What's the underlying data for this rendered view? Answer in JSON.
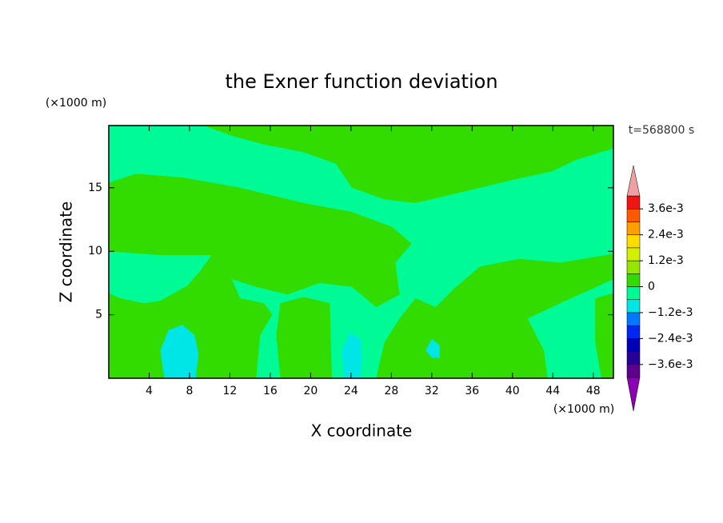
{
  "chart_data": {
    "type": "contour",
    "title": "the Exner function deviation",
    "x_label": "X coordinate",
    "y_label": "Z coordinate",
    "x_unit": "(×1000 m)",
    "y_unit": "(×1000 m)",
    "time_label": "t=568800 s",
    "xlim": [
      0,
      50
    ],
    "ylim": [
      0,
      19.9
    ],
    "xticks": [
      4,
      8,
      12,
      16,
      20,
      24,
      28,
      32,
      36,
      40,
      44,
      48
    ],
    "yticks": [
      5,
      10,
      15
    ],
    "levels": [
      -0.0042,
      -0.0036,
      -0.003,
      -0.0024,
      -0.0018,
      -0.0012,
      -0.0006,
      0,
      0.0006,
      0.0012,
      0.0018,
      0.0024,
      0.003,
      0.0036,
      0.0042
    ],
    "colors": [
      "#5c0090",
      "#260096",
      "#0000b4",
      "#0028f0",
      "#0078ff",
      "#00e6e6",
      "#00fa96",
      "#32dc00",
      "#96e600",
      "#d2f000",
      "#ffdc00",
      "#ffa000",
      "#ff5a00",
      "#f01414"
    ],
    "extend_colors": {
      "low": "#8c00b4",
      "high": "#f0a0a0"
    },
    "cbar_ticks": [
      {
        "value": 0.0036,
        "label": "3.6e-3"
      },
      {
        "value": 0.0024,
        "label": "2.4e-3"
      },
      {
        "value": 0.0012,
        "label": "1.2e-3"
      },
      0,
      {
        "value": -0.0012,
        "label": "−1.2e-3"
      },
      {
        "value": -0.0024,
        "label": "−2.4e-3"
      },
      {
        "value": -0.0036,
        "label": "−3.6e-3"
      }
    ],
    "background_level": -0.0006,
    "regions": [
      {
        "level": 0,
        "points": [
          [
            9.4,
            19.9
          ],
          [
            50,
            19.9
          ],
          [
            50,
            18.1
          ],
          [
            46.3,
            17.2
          ],
          [
            43.9,
            16.3
          ],
          [
            39.9,
            15.6
          ],
          [
            36.8,
            15.0
          ],
          [
            33.6,
            14.4
          ],
          [
            30.4,
            13.8
          ],
          [
            27.3,
            14.1
          ],
          [
            24.1,
            15.0
          ],
          [
            22.5,
            16.9
          ],
          [
            19.3,
            17.8
          ],
          [
            15.4,
            18.4
          ],
          [
            12.2,
            19.1
          ]
        ]
      },
      {
        "level": 0,
        "points": [
          [
            0,
            15.4
          ],
          [
            2.7,
            16.1
          ],
          [
            7.4,
            15.8
          ],
          [
            13.0,
            15.0
          ],
          [
            19.3,
            13.8
          ],
          [
            24.1,
            13.1
          ],
          [
            28.1,
            11.9
          ],
          [
            30.0,
            10.6
          ],
          [
            28.4,
            9.1
          ],
          [
            28.8,
            6.6
          ],
          [
            26.5,
            5.6
          ],
          [
            24.1,
            7.2
          ],
          [
            20.9,
            7.5
          ],
          [
            17.7,
            6.6
          ],
          [
            14.6,
            7.2
          ],
          [
            12.2,
            7.8
          ],
          [
            10.2,
            9.7
          ],
          [
            5.1,
            9.7
          ],
          [
            0,
            10.0
          ]
        ]
      },
      {
        "level": 0,
        "points": [
          [
            0,
            6.7
          ],
          [
            1.1,
            6.3
          ],
          [
            3.5,
            5.9
          ],
          [
            5.1,
            6.1
          ],
          [
            7.8,
            7.3
          ],
          [
            9.0,
            8.4
          ],
          [
            10.2,
            9.7
          ],
          [
            12.2,
            7.8
          ],
          [
            13.0,
            6.3
          ],
          [
            15.4,
            5.9
          ],
          [
            16.2,
            5.0
          ],
          [
            15.0,
            3.4
          ],
          [
            14.6,
            0
          ],
          [
            0,
            0
          ]
        ]
      },
      {
        "level": 0,
        "points": [
          [
            17.0,
            5.9
          ],
          [
            19.3,
            6.4
          ],
          [
            21.9,
            5.9
          ],
          [
            22.1,
            0
          ],
          [
            17.0,
            0
          ],
          [
            16.6,
            3.4
          ]
        ]
      },
      {
        "level": 0,
        "points": [
          [
            26.5,
            0
          ],
          [
            27.3,
            2.8
          ],
          [
            28.8,
            4.7
          ],
          [
            30.4,
            6.3
          ],
          [
            32.4,
            5.6
          ],
          [
            34.4,
            7.2
          ],
          [
            36.8,
            8.8
          ],
          [
            40.7,
            9.4
          ],
          [
            44.7,
            9.1
          ],
          [
            50,
            9.8
          ],
          [
            50,
            7.8
          ],
          [
            44.7,
            5.9
          ],
          [
            41.5,
            4.7
          ],
          [
            43.1,
            2.2
          ],
          [
            43.5,
            0
          ]
        ]
      },
      {
        "level": 0,
        "points": [
          [
            48.2,
            6.3
          ],
          [
            50,
            6.7
          ],
          [
            50,
            0
          ],
          [
            48.8,
            0
          ],
          [
            48.2,
            2.8
          ]
        ]
      },
      {
        "level": -0.0012,
        "points": [
          [
            5.5,
            0
          ],
          [
            5.1,
            2.2
          ],
          [
            5.9,
            3.8
          ],
          [
            7.3,
            4.2
          ],
          [
            8.5,
            3.4
          ],
          [
            8.9,
            1.9
          ],
          [
            8.6,
            0
          ]
        ]
      },
      {
        "level": -0.0012,
        "points": [
          [
            23.3,
            0
          ],
          [
            23.1,
            2.2
          ],
          [
            23.9,
            3.6
          ],
          [
            24.9,
            3.1
          ],
          [
            25.1,
            1.6
          ],
          [
            24.9,
            0
          ]
        ]
      },
      {
        "level": -0.0012,
        "points": [
          [
            31.4,
            2.2
          ],
          [
            32.0,
            3.1
          ],
          [
            32.8,
            2.6
          ],
          [
            32.8,
            1.6
          ],
          [
            32.0,
            1.6
          ]
        ]
      }
    ]
  }
}
